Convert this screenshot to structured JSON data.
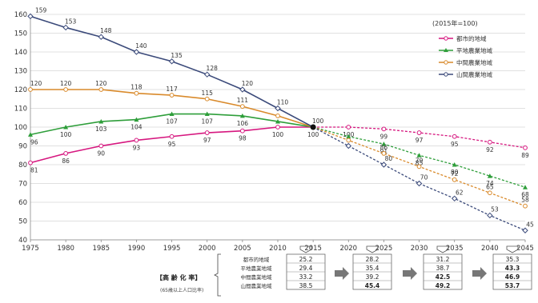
{
  "chart_data": {
    "type": "line",
    "x": [
      1975,
      1980,
      1985,
      1990,
      1995,
      2000,
      2005,
      2010,
      2015,
      2020,
      2025,
      2030,
      2035,
      2040,
      2045
    ],
    "ylim": [
      40,
      160
    ],
    "y_ticks": [
      40,
      50,
      60,
      70,
      80,
      90,
      100,
      110,
      120,
      130,
      140,
      150,
      160
    ],
    "grid": "horizontal",
    "index_note": "(2015年=100)",
    "legend_position": "top-right",
    "series": [
      {
        "name": "都市的地域",
        "color": "#d6177f",
        "marker": "circle",
        "values": [
          81,
          86,
          90,
          93,
          95,
          97,
          98,
          100,
          100,
          100,
          99,
          97,
          95,
          92,
          89
        ],
        "labels": [
          "81",
          "86",
          "90",
          "93",
          "95",
          "97",
          "98",
          "100",
          "100",
          "100",
          "99",
          "97",
          "95",
          "92",
          "89"
        ]
      },
      {
        "name": "平地農業地域",
        "color": "#2e9e3a",
        "marker": "triangle",
        "values": [
          96,
          100,
          103,
          104,
          107,
          107,
          106,
          103,
          100,
          95,
          91,
          85,
          80,
          74,
          68
        ],
        "labels": [
          "96",
          "100",
          "103",
          "104",
          "107",
          "107",
          "106",
          "",
          "",
          "",
          "91",
          "85",
          "80",
          "74",
          "68"
        ]
      },
      {
        "name": "中間農業地域",
        "color": "#d98a2b",
        "marker": "circle",
        "values": [
          120,
          120,
          120,
          118,
          117,
          115,
          111,
          106,
          100,
          93,
          86,
          79,
          72,
          65,
          58
        ],
        "labels": [
          "120",
          "120",
          "120",
          "118",
          "117",
          "115",
          "111",
          "",
          "",
          "",
          "86",
          "79",
          "72",
          "65",
          "58"
        ]
      },
      {
        "name": "山間農業地域",
        "color": "#3b4a7a",
        "marker": "diamond",
        "values": [
          159,
          153,
          148,
          140,
          135,
          128,
          120,
          110,
          100,
          90,
          80,
          70,
          62,
          53,
          45
        ],
        "labels": [
          "159",
          "153",
          "148",
          "140",
          "135",
          "128",
          "120",
          "110",
          "100",
          "",
          "80",
          "70",
          "62",
          "53",
          "45"
        ]
      }
    ]
  },
  "table": {
    "title": "【高 齢 化 率】",
    "subtitle": "(65歳以上人口比率)",
    "row_labels": [
      "都市的地域",
      "平地農業地域",
      "中間農業地域",
      "山間農業地域"
    ],
    "columns": [
      {
        "year": "2015",
        "values": [
          "25.2",
          "29.4",
          "33.2",
          "38.5"
        ]
      },
      {
        "year": "2025",
        "values": [
          "28.2",
          "35.4",
          "39.2",
          "45.4"
        ]
      },
      {
        "year": "2035",
        "values": [
          "31.2",
          "38.7",
          "42.5",
          "49.2"
        ]
      },
      {
        "year": "2045",
        "values": [
          "35.3",
          "43.3",
          "46.9",
          "53.7"
        ]
      }
    ]
  }
}
